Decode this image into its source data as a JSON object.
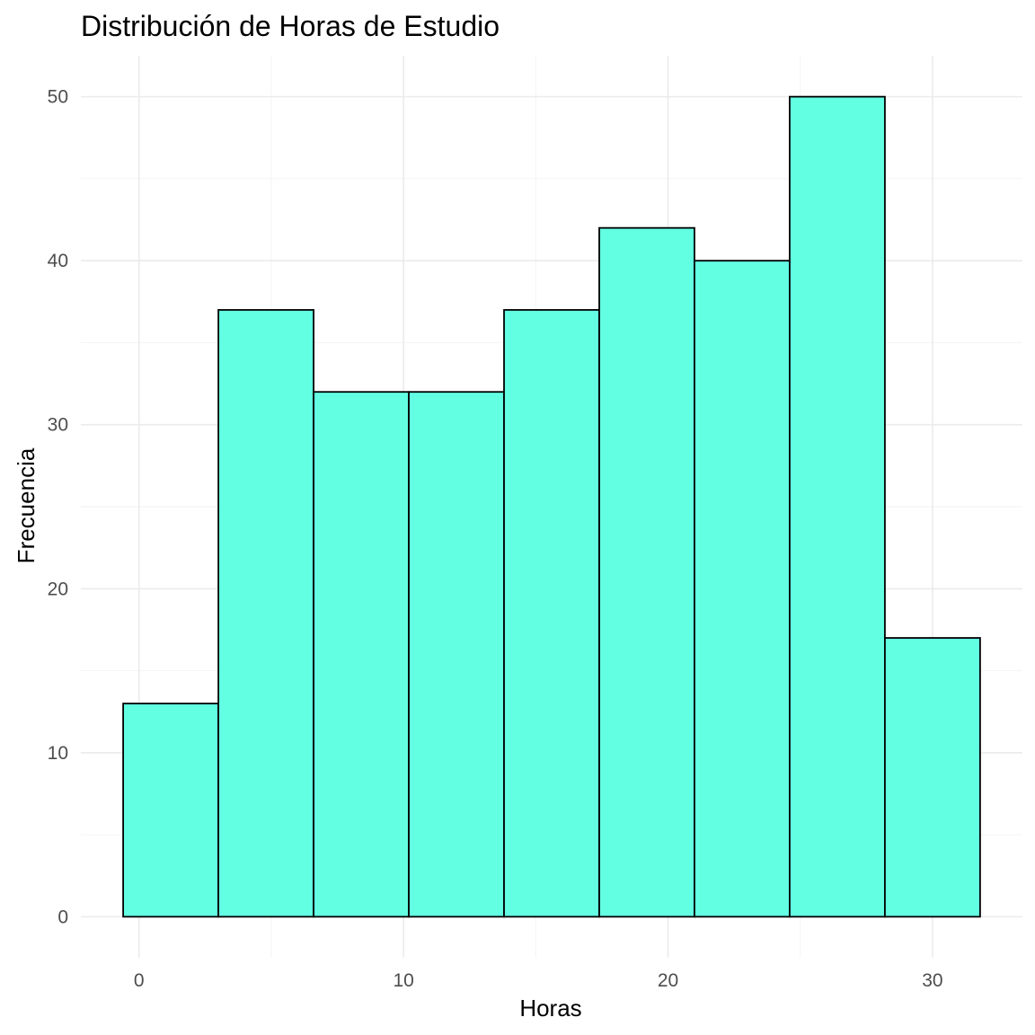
{
  "chart_data": {
    "type": "bar",
    "title": "Distribución de Horas de Estudio",
    "xlabel": "Horas",
    "ylabel": "Frecuencia",
    "bins": [
      {
        "x_start": -0.6,
        "x_end": 3.0,
        "count": 13
      },
      {
        "x_start": 3.0,
        "x_end": 6.6,
        "count": 37
      },
      {
        "x_start": 6.6,
        "x_end": 10.2,
        "count": 32
      },
      {
        "x_start": 10.2,
        "x_end": 13.8,
        "count": 32
      },
      {
        "x_start": 13.8,
        "x_end": 17.4,
        "count": 37
      },
      {
        "x_start": 17.4,
        "x_end": 21.0,
        "count": 42
      },
      {
        "x_start": 21.0,
        "x_end": 24.6,
        "count": 40
      },
      {
        "x_start": 24.6,
        "x_end": 28.2,
        "count": 50
      },
      {
        "x_start": 28.2,
        "x_end": 31.8,
        "count": 17
      }
    ],
    "xlim": [
      -2.2,
      33.4
    ],
    "ylim": [
      -2.5,
      52.5
    ],
    "x_ticks": [
      0,
      10,
      20,
      30
    ],
    "x_tick_labels": [
      "0",
      "10",
      "20",
      "30"
    ],
    "y_ticks": [
      0,
      10,
      20,
      30,
      40,
      50
    ],
    "y_tick_labels": [
      "0",
      "10",
      "20",
      "30",
      "40",
      "50"
    ],
    "x_minor_ticks": [
      5,
      15,
      25
    ],
    "y_minor_ticks": [
      5,
      15,
      25,
      35,
      45
    ],
    "grid": true,
    "legend": "none",
    "colors": {
      "bar_fill": "#62ffe3",
      "bar_border": "#000000",
      "grid_major": "#ebebeb",
      "grid_minor": "#f2f2f2",
      "tick_text": "#4d4d4d"
    }
  }
}
